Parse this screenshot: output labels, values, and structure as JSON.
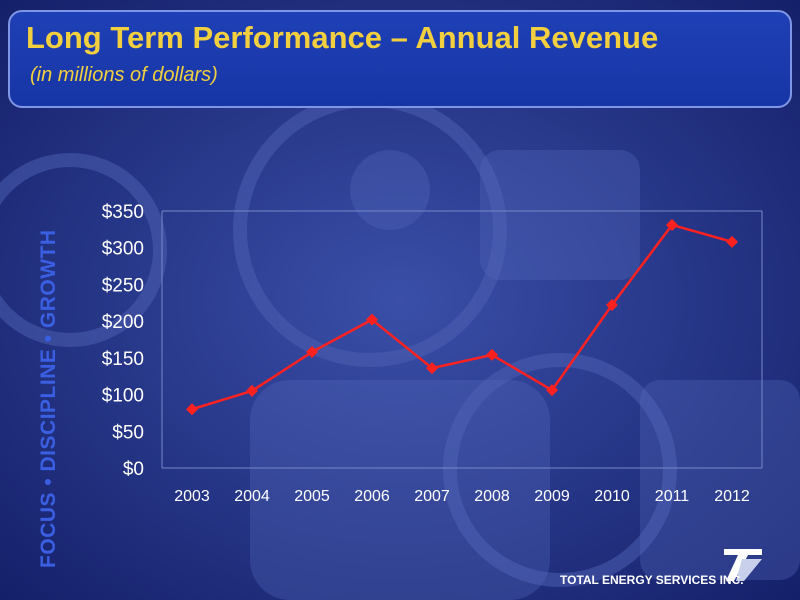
{
  "header": {
    "title": "Long Term Performance – Annual Revenue",
    "subtitle": "(in millions of dollars)"
  },
  "sidebar_tagline": "FOCUS • DISCIPLINE • GROWTH",
  "footer": {
    "company": "TOTAL ENERGY SERVICES INC."
  },
  "colors": {
    "accent": "#f2cf3e",
    "series": "#ff2020",
    "background": "#1b2a78"
  },
  "chart_data": {
    "type": "line",
    "categories": [
      "2003",
      "2004",
      "2005",
      "2006",
      "2007",
      "2008",
      "2009",
      "2010",
      "2011",
      "2012"
    ],
    "series": [
      {
        "values": [
          80,
          105,
          158,
          202,
          136,
          154,
          106,
          222,
          331,
          308
        ]
      }
    ],
    "ylim": [
      0,
      350
    ],
    "yticks": [
      0,
      50,
      100,
      150,
      200,
      250,
      300,
      350
    ],
    "ytick_labels": [
      "$0",
      "$50",
      "$100",
      "$150",
      "$200",
      "$250",
      "$300",
      "$350"
    ],
    "grid": false,
    "legend": "none"
  }
}
